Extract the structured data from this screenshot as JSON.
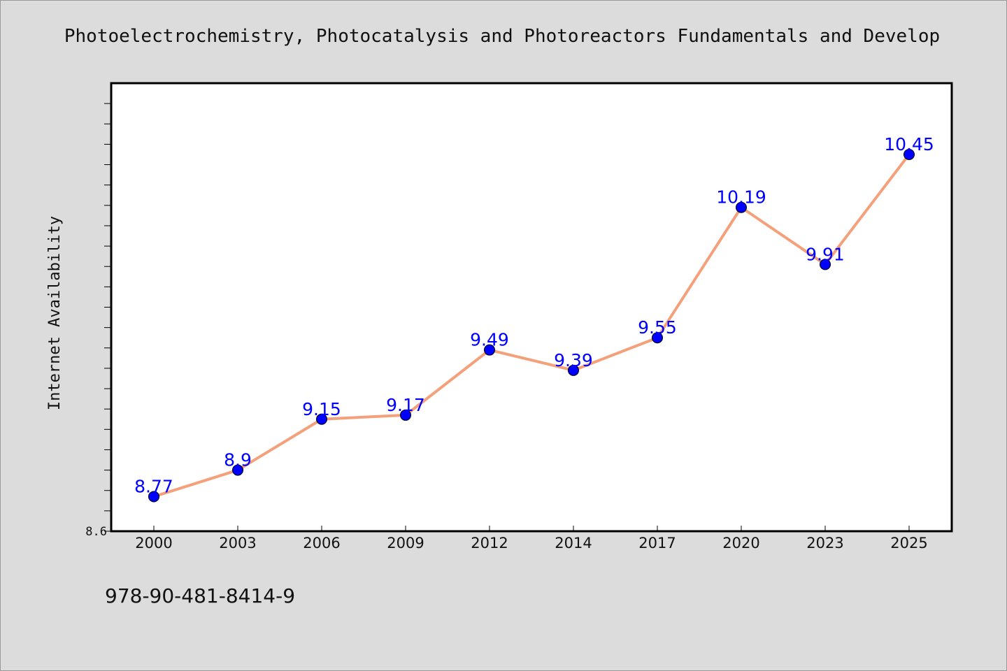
{
  "chart_data": {
    "type": "line",
    "title": "Photoelectrochemistry, Photocatalysis and Photoreactors Fundamentals and Develop",
    "xlabel": "",
    "ylabel": "Internet Availability",
    "categories": [
      "2000",
      "2003",
      "2006",
      "2009",
      "2012",
      "2014",
      "2017",
      "2020",
      "2023",
      "2025"
    ],
    "series": [
      {
        "values": [
          8.77,
          8.9,
          9.15,
          9.17,
          9.49,
          9.39,
          9.55,
          10.19,
          9.91,
          10.45
        ],
        "labels": [
          "8.77",
          "8.9",
          "9.15",
          "9.17",
          "9.49",
          "9.39",
          "9.55",
          "10.19",
          "9.91",
          "10.45"
        ],
        "line_color": "#f4a07a",
        "marker_color": "#0000ff"
      }
    ],
    "ylim": [
      8.6,
      10.8
    ],
    "yticks": [
      "8.6"
    ],
    "grid": false,
    "legend": "none"
  },
  "footer": {
    "isbn": "978-90-481-8414-9"
  }
}
